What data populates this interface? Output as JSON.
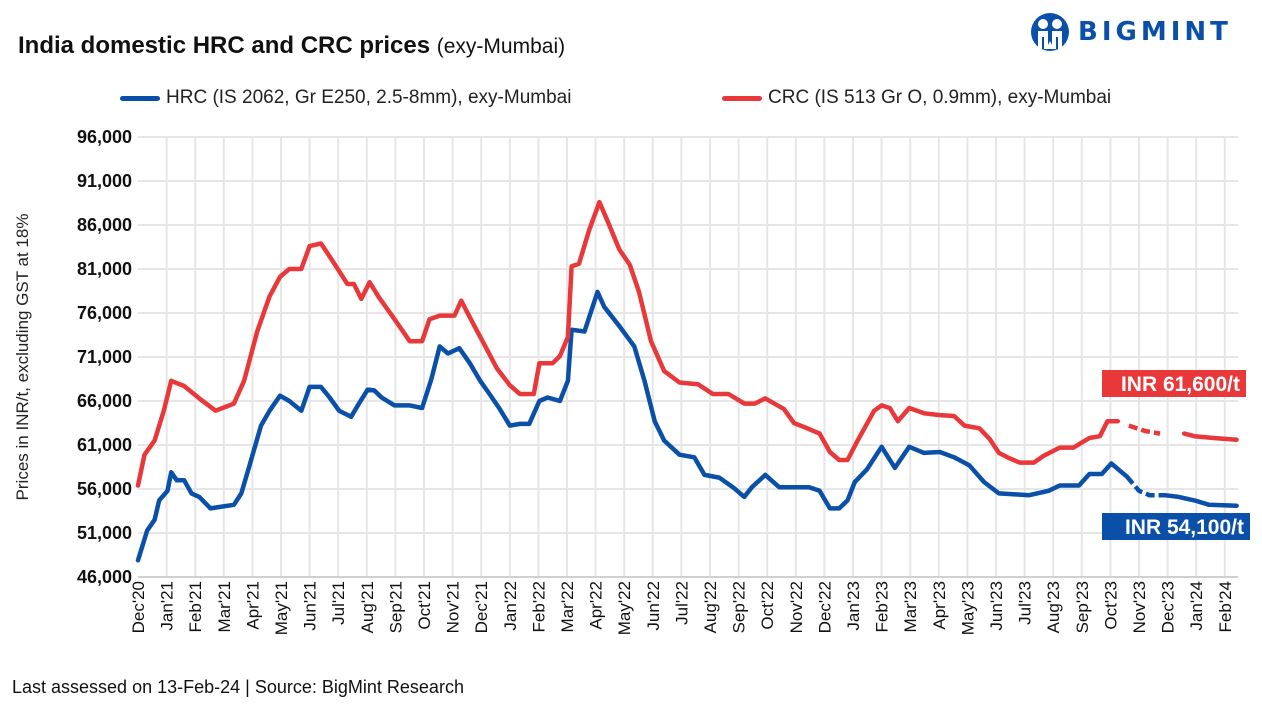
{
  "title": {
    "main": "India domestic HRC and CRC prices",
    "sub": "(exy-Mumbai)"
  },
  "logo": {
    "text": "BIGMINT",
    "color": "#0a4fa8"
  },
  "footer": {
    "assessed": "Last assessed on 13-Feb-24",
    "separator": "|",
    "source": "Source: BigMint Research"
  },
  "chart_data": {
    "type": "line",
    "ylabel": "Prices in INR/t, excluding GST at 18%",
    "ylim": [
      46000,
      96000
    ],
    "yticks": [
      "96,000",
      "91,000",
      "86,000",
      "81,000",
      "76,000",
      "71,000",
      "66,000",
      "61,000",
      "56,000",
      "51,000",
      "46,000"
    ],
    "ytick_values": [
      96000,
      91000,
      86000,
      81000,
      76000,
      71000,
      66000,
      61000,
      56000,
      51000,
      46000
    ],
    "xlim": [
      "2020-12-01",
      "2024-02-13"
    ],
    "xticks": [
      "Dec'20",
      "Jan'21",
      "Feb'21",
      "Mar'21",
      "Apr'21",
      "May'21",
      "Jun'21",
      "Jul'21",
      "Aug'21",
      "Sep'21",
      "Oct'21",
      "Nov'21",
      "Dec'21",
      "Jan'22",
      "Feb'22",
      "Mar'22",
      "Apr'22",
      "May'22",
      "Jun'22",
      "Jul'22",
      "Aug'22",
      "Sep'22",
      "Oct'22",
      "Nov'22",
      "Dec'22",
      "Jan'23",
      "Feb'23",
      "Mar'23",
      "Apr'23",
      "May'23",
      "Jun'23",
      "Jul'23",
      "Aug'23",
      "Sep'23",
      "Oct'23",
      "Nov'23",
      "Dec'23",
      "Jan'24",
      "Feb'24"
    ],
    "grid": true,
    "legend_placement": "top",
    "dashed_range": [
      "2023-10-19",
      "2023-11-28"
    ],
    "series": [
      {
        "name": "HRC (IS 2062, Gr E250, 2.5-8mm), exy-Mumbai",
        "color": "#0a4fa8",
        "end_label": "INR 54,100/t",
        "points": [
          [
            "2020-12-01",
            47900
          ],
          [
            "2020-12-11",
            51300
          ],
          [
            "2020-12-19",
            52500
          ],
          [
            "2020-12-24",
            54700
          ],
          [
            "2021-01-02",
            55800
          ],
          [
            "2021-01-06",
            57900
          ],
          [
            "2021-01-12",
            57000
          ],
          [
            "2021-01-20",
            57000
          ],
          [
            "2021-01-28",
            55500
          ],
          [
            "2021-02-05",
            55100
          ],
          [
            "2021-02-16",
            53800
          ],
          [
            "2021-02-27",
            54000
          ],
          [
            "2021-03-12",
            54200
          ],
          [
            "2021-03-20",
            55500
          ],
          [
            "2021-03-29",
            58700
          ],
          [
            "2021-04-10",
            63200
          ],
          [
            "2021-04-19",
            64900
          ],
          [
            "2021-04-30",
            66600
          ],
          [
            "2021-05-10",
            66000
          ],
          [
            "2021-05-23",
            64900
          ],
          [
            "2021-06-01",
            67600
          ],
          [
            "2021-06-13",
            67600
          ],
          [
            "2021-06-22",
            66400
          ],
          [
            "2021-07-02",
            64900
          ],
          [
            "2021-07-15",
            64200
          ],
          [
            "2021-07-24",
            65800
          ],
          [
            "2021-08-02",
            67300
          ],
          [
            "2021-08-09",
            67200
          ],
          [
            "2021-08-17",
            66400
          ],
          [
            "2021-08-31",
            65500
          ],
          [
            "2021-09-16",
            65500
          ],
          [
            "2021-09-29",
            65200
          ],
          [
            "2021-10-09",
            68500
          ],
          [
            "2021-10-18",
            72200
          ],
          [
            "2021-10-27",
            71400
          ],
          [
            "2021-11-08",
            72000
          ],
          [
            "2021-11-19",
            70300
          ],
          [
            "2021-11-30",
            68300
          ],
          [
            "2021-12-10",
            66800
          ],
          [
            "2021-12-21",
            65100
          ],
          [
            "2022-01-01",
            63200
          ],
          [
            "2022-01-12",
            63400
          ],
          [
            "2022-01-22",
            63400
          ],
          [
            "2022-02-02",
            66000
          ],
          [
            "2022-02-10",
            66400
          ],
          [
            "2022-02-22",
            66000
          ],
          [
            "2022-03-02",
            68300
          ],
          [
            "2022-03-06",
            74100
          ],
          [
            "2022-03-20",
            73900
          ],
          [
            "2022-04-03",
            78400
          ],
          [
            "2022-04-10",
            76700
          ],
          [
            "2022-04-26",
            74500
          ],
          [
            "2022-05-12",
            72200
          ],
          [
            "2022-05-23",
            68300
          ],
          [
            "2022-06-03",
            63700
          ],
          [
            "2022-06-13",
            61500
          ],
          [
            "2022-06-29",
            59900
          ],
          [
            "2022-07-15",
            59600
          ],
          [
            "2022-07-26",
            57600
          ],
          [
            "2022-08-11",
            57300
          ],
          [
            "2022-08-27",
            56100
          ],
          [
            "2022-09-07",
            55100
          ],
          [
            "2022-09-15",
            56200
          ],
          [
            "2022-09-29",
            57600
          ],
          [
            "2022-10-14",
            56200
          ],
          [
            "2022-11-15",
            56200
          ],
          [
            "2022-11-26",
            55800
          ],
          [
            "2022-12-07",
            53800
          ],
          [
            "2022-12-17",
            53800
          ],
          [
            "2022-12-26",
            54700
          ],
          [
            "2023-01-03",
            56800
          ],
          [
            "2023-01-16",
            58200
          ],
          [
            "2023-02-01",
            60800
          ],
          [
            "2023-02-14",
            58400
          ],
          [
            "2023-02-28",
            60800
          ],
          [
            "2023-03-16",
            60100
          ],
          [
            "2023-04-02",
            60200
          ],
          [
            "2023-04-17",
            59600
          ],
          [
            "2023-05-03",
            58700
          ],
          [
            "2023-05-19",
            56800
          ],
          [
            "2023-06-04",
            55500
          ],
          [
            "2023-07-06",
            55300
          ],
          [
            "2023-07-27",
            55800
          ],
          [
            "2023-08-08",
            56400
          ],
          [
            "2023-08-29",
            56400
          ],
          [
            "2023-09-09",
            57700
          ],
          [
            "2023-09-22",
            57700
          ],
          [
            "2023-10-02",
            58900
          ],
          [
            "2023-10-19",
            57400
          ],
          [
            "2023-11-01",
            55800
          ],
          [
            "2023-11-12",
            55300
          ],
          [
            "2023-11-28",
            55300
          ],
          [
            "2023-12-13",
            55100
          ],
          [
            "2023-12-30",
            54700
          ],
          [
            "2024-01-15",
            54200
          ],
          [
            "2024-02-13",
            54100
          ]
        ]
      },
      {
        "name": "CRC (IS 513 Gr O, 0.9mm), exy-Mumbai",
        "color": "#e8383a",
        "end_label": "INR 61,600/t",
        "points": [
          [
            "2020-12-01",
            56400
          ],
          [
            "2020-12-08",
            59900
          ],
          [
            "2020-12-19",
            61500
          ],
          [
            "2020-12-29",
            64900
          ],
          [
            "2021-01-06",
            68300
          ],
          [
            "2021-01-20",
            67700
          ],
          [
            "2021-02-05",
            66300
          ],
          [
            "2021-02-21",
            64900
          ],
          [
            "2021-03-12",
            65700
          ],
          [
            "2021-03-23",
            68300
          ],
          [
            "2021-04-06",
            73900
          ],
          [
            "2021-04-19",
            77900
          ],
          [
            "2021-04-30",
            80100
          ],
          [
            "2021-05-10",
            81000
          ],
          [
            "2021-05-23",
            81000
          ],
          [
            "2021-06-01",
            83600
          ],
          [
            "2021-06-13",
            83900
          ],
          [
            "2021-06-27",
            81600
          ],
          [
            "2021-07-11",
            79300
          ],
          [
            "2021-07-18",
            79300
          ],
          [
            "2021-07-26",
            77600
          ],
          [
            "2021-08-04",
            79500
          ],
          [
            "2021-08-14",
            77800
          ],
          [
            "2021-08-31",
            75300
          ],
          [
            "2021-09-16",
            72800
          ],
          [
            "2021-09-29",
            72800
          ],
          [
            "2021-10-07",
            75300
          ],
          [
            "2021-10-18",
            75700
          ],
          [
            "2021-11-03",
            75700
          ],
          [
            "2021-11-10",
            77400
          ],
          [
            "2021-11-24",
            74500
          ],
          [
            "2021-12-05",
            72300
          ],
          [
            "2021-12-18",
            69700
          ],
          [
            "2022-01-01",
            67800
          ],
          [
            "2022-01-12",
            66800
          ],
          [
            "2022-01-27",
            66800
          ],
          [
            "2022-02-02",
            70300
          ],
          [
            "2022-02-15",
            70300
          ],
          [
            "2022-02-22",
            71100
          ],
          [
            "2022-03-02",
            73300
          ],
          [
            "2022-03-06",
            81300
          ],
          [
            "2022-03-14",
            81600
          ],
          [
            "2022-03-25",
            85400
          ],
          [
            "2022-04-05",
            88600
          ],
          [
            "2022-04-13",
            86600
          ],
          [
            "2022-04-26",
            83200
          ],
          [
            "2022-05-07",
            81500
          ],
          [
            "2022-05-17",
            78400
          ],
          [
            "2022-05-30",
            72800
          ],
          [
            "2022-06-13",
            69400
          ],
          [
            "2022-06-29",
            68100
          ],
          [
            "2022-07-19",
            67900
          ],
          [
            "2022-08-04",
            66800
          ],
          [
            "2022-08-21",
            66800
          ],
          [
            "2022-09-07",
            65700
          ],
          [
            "2022-09-18",
            65700
          ],
          [
            "2022-09-29",
            66300
          ],
          [
            "2022-10-19",
            65100
          ],
          [
            "2022-10-30",
            63500
          ],
          [
            "2022-11-13",
            62900
          ],
          [
            "2022-11-26",
            62300
          ],
          [
            "2022-12-07",
            60200
          ],
          [
            "2022-12-17",
            59300
          ],
          [
            "2022-12-26",
            59300
          ],
          [
            "2023-01-06",
            61500
          ],
          [
            "2023-01-24",
            64900
          ],
          [
            "2023-02-01",
            65500
          ],
          [
            "2023-02-09",
            65200
          ],
          [
            "2023-02-17",
            63700
          ],
          [
            "2023-02-28",
            65200
          ],
          [
            "2023-03-16",
            64600
          ],
          [
            "2023-04-02",
            64400
          ],
          [
            "2023-04-17",
            64300
          ],
          [
            "2023-04-28",
            63200
          ],
          [
            "2023-05-14",
            62900
          ],
          [
            "2023-05-25",
            61700
          ],
          [
            "2023-06-04",
            60100
          ],
          [
            "2023-06-15",
            59500
          ],
          [
            "2023-06-26",
            59000
          ],
          [
            "2023-07-11",
            59000
          ],
          [
            "2023-07-22",
            59800
          ],
          [
            "2023-08-08",
            60700
          ],
          [
            "2023-08-23",
            60700
          ],
          [
            "2023-09-09",
            61800
          ],
          [
            "2023-09-20",
            62000
          ],
          [
            "2023-09-28",
            63700
          ],
          [
            "2023-10-09",
            63700
          ],
          [
            "2023-10-21",
            63200
          ],
          [
            "2023-11-07",
            62600
          ],
          [
            "2023-11-23",
            62300
          ],
          [
            "2023-12-19",
            62300
          ],
          [
            "2023-12-30",
            62000
          ],
          [
            "2024-01-20",
            61800
          ],
          [
            "2024-02-13",
            61600
          ]
        ]
      }
    ]
  }
}
